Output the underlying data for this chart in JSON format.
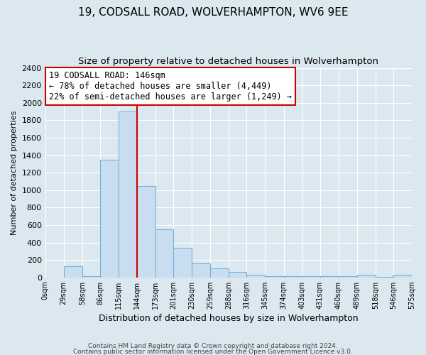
{
  "title": "19, CODSALL ROAD, WOLVERHAMPTON, WV6 9EE",
  "subtitle": "Size of property relative to detached houses in Wolverhampton",
  "xlabel": "Distribution of detached houses by size in Wolverhampton",
  "ylabel": "Number of detached properties",
  "bar_left_edges": [
    0,
    29,
    58,
    86,
    115,
    144,
    173,
    201,
    230,
    259,
    288,
    316,
    345,
    374,
    403,
    431,
    460,
    489,
    518,
    546
  ],
  "bar_widths": [
    29,
    29,
    28,
    29,
    29,
    29,
    28,
    29,
    29,
    29,
    28,
    29,
    29,
    29,
    28,
    29,
    29,
    29,
    28,
    29
  ],
  "bar_heights": [
    0,
    125,
    10,
    1350,
    1900,
    1050,
    550,
    340,
    160,
    100,
    60,
    30,
    10,
    10,
    10,
    10,
    10,
    30,
    5,
    30
  ],
  "bar_color": "#c8ddef",
  "bar_edge_color": "#6aaed6",
  "tick_labels": [
    "0sqm",
    "29sqm",
    "58sqm",
    "86sqm",
    "115sqm",
    "144sqm",
    "173sqm",
    "201sqm",
    "230sqm",
    "259sqm",
    "288sqm",
    "316sqm",
    "345sqm",
    "374sqm",
    "403sqm",
    "431sqm",
    "460sqm",
    "489sqm",
    "518sqm",
    "546sqm",
    "575sqm"
  ],
  "ylim": [
    0,
    2400
  ],
  "yticks": [
    0,
    200,
    400,
    600,
    800,
    1000,
    1200,
    1400,
    1600,
    1800,
    2000,
    2200,
    2400
  ],
  "vline_x": 144,
  "vline_color": "#cc0000",
  "annotation_title": "19 CODSALL ROAD: 146sqm",
  "annotation_line1": "← 78% of detached houses are smaller (4,449)",
  "annotation_line2": "22% of semi-detached houses are larger (1,249) →",
  "annotation_box_color": "#cc0000",
  "footer1": "Contains HM Land Registry data © Crown copyright and database right 2024.",
  "footer2": "Contains public sector information licensed under the Open Government Licence v3.0.",
  "bg_color": "#dce8f0",
  "plot_bg_color": "#dce8f0",
  "grid_color": "#ffffff",
  "title_fontsize": 11,
  "subtitle_fontsize": 9.5
}
